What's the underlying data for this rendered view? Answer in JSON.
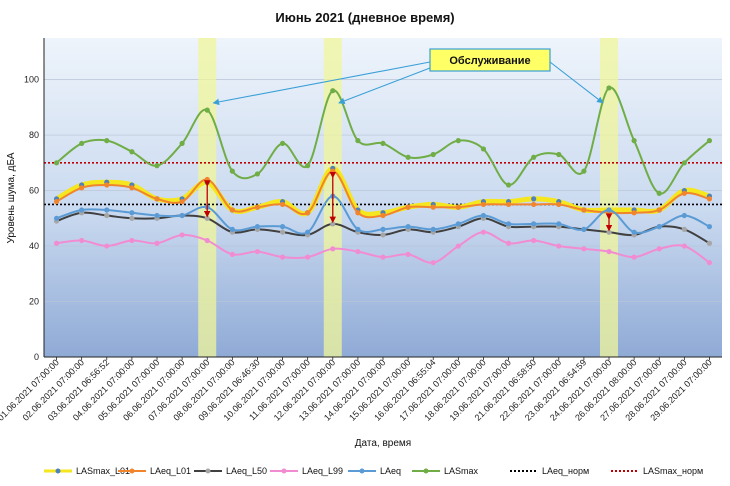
{
  "chart_data": {
    "type": "line",
    "title": "Июнь 2021 (дневное время)",
    "xlabel": "Дата, время",
    "ylabel": "Уровень шума, дБА",
    "ylim": [
      0,
      115
    ],
    "yticks": [
      0,
      20,
      40,
      60,
      80,
      100
    ],
    "grid": "horizontal",
    "legend_position": "bottom",
    "categories": [
      "01.06.2021 07:00:00",
      "02.06.2021 07:00:00",
      "03.06.2021 06:56:52",
      "04.06.2021 07:00:00",
      "05.06.2021 07:00:00",
      "06.06.2021 07:00:00",
      "07.06.2021 07:00:00",
      "08.06.2021 07:00:00",
      "09.06.2021 06:46:30",
      "10.06.2021 07:00:00",
      "11.06.2021 07:00:00",
      "12.06.2021 07:00:00",
      "13.06.2021 07:00:00",
      "14.06.2021 07:00:00",
      "15.06.2021 07:00:00",
      "16.06.2021 06:55:04",
      "17.06.2021 07:00:00",
      "18.06.2021 07:00:00",
      "19.06.2021 07:00:00",
      "21.06.2021 06:58:50",
      "22.06.2021 07:00:00",
      "23.06.2021 06:54:59",
      "24.06.2021 07:00:00",
      "26.06.2021 08:00:00",
      "27.06.2021 07:00:00",
      "28.06.2021 07:00:00",
      "29.06.2021 07:00:00"
    ],
    "series": [
      {
        "name": "LASmax_L01",
        "color": "#f5e61e",
        "marker": "#4f81bd",
        "values": [
          57,
          62,
          63,
          62,
          57,
          57,
          63,
          53,
          54,
          56,
          52,
          68,
          53,
          52,
          54,
          55,
          54,
          56,
          56,
          57,
          56,
          53,
          53,
          53,
          53,
          60,
          58
        ]
      },
      {
        "name": "LAeq_L01",
        "color": "#f0852d",
        "marker": "#f0852d",
        "values": [
          56,
          61,
          62,
          61,
          57,
          56,
          64,
          53,
          54,
          55,
          52,
          67,
          52,
          51,
          54,
          54,
          54,
          55,
          55,
          55,
          55,
          53,
          52,
          52,
          53,
          59,
          57
        ]
      },
      {
        "name": "LAeq_L50",
        "color": "#404040",
        "marker": "#a6a6a6",
        "values": [
          49,
          52,
          51,
          50,
          50,
          51,
          50,
          45,
          46,
          45,
          44,
          48,
          45,
          44,
          46,
          45,
          47,
          50,
          47,
          47,
          47,
          46,
          45,
          44,
          47,
          46,
          41
        ]
      },
      {
        "name": "LAeq_L99",
        "color": "#f28cd2",
        "marker": "#f28cd2",
        "values": [
          41,
          42,
          40,
          42,
          41,
          44,
          42,
          37,
          38,
          36,
          36,
          39,
          38,
          36,
          37,
          34,
          40,
          45,
          41,
          42,
          40,
          39,
          38,
          36,
          39,
          40,
          34
        ]
      },
      {
        "name": "LAeq",
        "color": "#5b9bd5",
        "marker": "#5b9bd5",
        "values": [
          50,
          53,
          53,
          52,
          51,
          51,
          54,
          46,
          47,
          47,
          45,
          58,
          46,
          46,
          47,
          46,
          48,
          51,
          48,
          48,
          48,
          46,
          53,
          45,
          47,
          51,
          47
        ]
      },
      {
        "name": "LASmax",
        "color": "#70ad47",
        "marker": "#70ad47",
        "values": [
          70,
          77,
          78,
          74,
          69,
          77,
          89,
          67,
          66,
          77,
          69,
          96,
          78,
          77,
          72,
          73,
          78,
          75,
          62,
          72,
          73,
          67,
          97,
          78,
          59,
          70,
          78
        ]
      },
      {
        "name": "LAeq_норм",
        "color": "#000000",
        "dash": "2,2",
        "constant": 55
      },
      {
        "name": "LASmax_норм",
        "color": "#c00000",
        "dash": "2,2",
        "constant": 70
      }
    ],
    "annotation": {
      "text": "Обслуживание",
      "highlighted_categories": [
        "07.06.2021 07:00:00",
        "12.06.2021 07:00:00",
        "24.06.2021 07:00:00"
      ]
    }
  }
}
